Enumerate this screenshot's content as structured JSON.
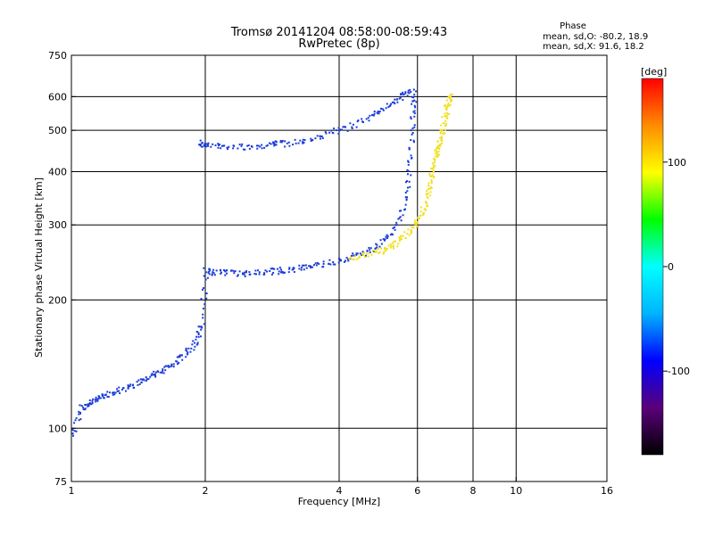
{
  "header": {
    "title": "Tromsø 20141204 08:58:00-08:59:43",
    "subtitle": "RwPretec (8p)",
    "phase_title": "Phase",
    "phase_o": "mean, sd,O: -80.2, 18.9",
    "phase_x": "mean, sd,X:  91.6, 18.2"
  },
  "chart_data": {
    "type": "scatter",
    "xlabel": "Frequency [MHz]",
    "ylabel": "Stationary phase Virtual Height [km]",
    "xscale": "log",
    "yscale": "log",
    "xlim": [
      1,
      16
    ],
    "ylim": [
      75,
      750
    ],
    "xticks": [
      1,
      2,
      4,
      6,
      8,
      10,
      16
    ],
    "yticks": [
      75,
      100,
      200,
      300,
      400,
      500,
      600,
      750
    ],
    "grid_x": [
      2,
      4,
      6,
      8,
      10
    ],
    "grid_y": [
      100,
      200,
      300,
      400,
      500,
      600
    ],
    "colorbar": {
      "label": "[deg]",
      "min": -180,
      "max": 180,
      "ticks": [
        100,
        0,
        -100
      ],
      "colors": [
        "#000000",
        "#5a007a",
        "#0000ff",
        "#00b4ff",
        "#00ffff",
        "#00ff00",
        "#ffff00",
        "#ff8c00",
        "#ff0000"
      ]
    },
    "series": [
      {
        "mode": "O",
        "mean_phase": -80.2,
        "sd_phase": 18.9,
        "color": "#1a3cd8",
        "trace_points": [
          [
            1.0,
            97
          ],
          [
            1.05,
            112
          ],
          [
            1.1,
            115
          ],
          [
            1.15,
            118
          ],
          [
            1.2,
            121
          ],
          [
            1.3,
            124
          ],
          [
            1.4,
            128
          ],
          [
            1.5,
            132
          ],
          [
            1.6,
            137
          ],
          [
            1.7,
            144
          ],
          [
            1.8,
            150
          ],
          [
            1.9,
            160
          ],
          [
            1.95,
            175
          ],
          [
            2.0,
            235
          ],
          [
            2.1,
            233
          ],
          [
            2.3,
            232
          ],
          [
            2.5,
            232
          ],
          [
            2.8,
            234
          ],
          [
            3.0,
            236
          ],
          [
            3.3,
            239
          ],
          [
            3.6,
            243
          ],
          [
            4.0,
            248
          ],
          [
            4.4,
            256
          ],
          [
            4.8,
            265
          ],
          [
            5.2,
            285
          ],
          [
            5.5,
            320
          ],
          [
            5.7,
            380
          ],
          [
            5.8,
            460
          ],
          [
            5.85,
            560
          ],
          [
            5.9,
            620
          ],
          [
            1.95,
            470
          ],
          [
            2.0,
            465
          ],
          [
            2.2,
            462
          ],
          [
            2.5,
            460
          ],
          [
            2.8,
            464
          ],
          [
            3.0,
            468
          ],
          [
            3.4,
            478
          ],
          [
            3.8,
            494
          ],
          [
            4.2,
            512
          ],
          [
            4.7,
            540
          ],
          [
            5.1,
            570
          ],
          [
            5.5,
            600
          ],
          [
            5.8,
            625
          ]
        ]
      },
      {
        "mode": "X",
        "mean_phase": 91.6,
        "sd_phase": 18.2,
        "color": "#f0e020",
        "trace_points": [
          [
            4.2,
            252
          ],
          [
            4.6,
            257
          ],
          [
            5.0,
            263
          ],
          [
            5.3,
            272
          ],
          [
            5.6,
            285
          ],
          [
            5.9,
            300
          ],
          [
            6.1,
            320
          ],
          [
            6.3,
            350
          ],
          [
            6.4,
            380
          ],
          [
            6.5,
            410
          ],
          [
            6.6,
            440
          ],
          [
            6.7,
            470
          ],
          [
            6.8,
            500
          ],
          [
            6.9,
            540
          ],
          [
            7.0,
            580
          ],
          [
            7.1,
            610
          ]
        ]
      }
    ]
  }
}
